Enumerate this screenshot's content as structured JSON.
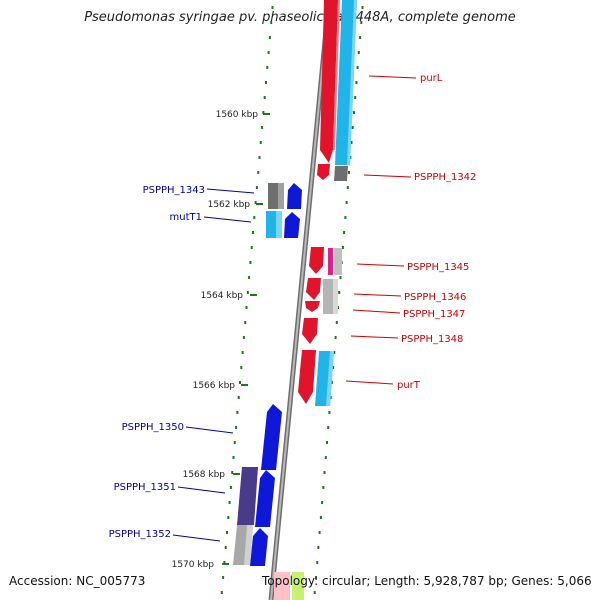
{
  "title": "Pseudomonas syringae pv. phaseolicola 1448A, complete genome",
  "accession": "Accession: NC_005773",
  "summary": "Topology: circular; Length: 5,928,787 bp; Genes: 5,066",
  "colors": {
    "backbone": "#8a8a8a",
    "plus_gene": "#e0142a",
    "minus_gene": "#1018d8",
    "plus_cds": "#20b4e8",
    "minus_cds": "#20b4e8",
    "gray_feature": "#8c8c8c",
    "purple_feature": "#4a3a8a",
    "pink_feature": "#e0208a",
    "tick": "#1a7a1a",
    "plus_label": "#cc0000",
    "minus_label": "#0000aa"
  },
  "scale": {
    "ticks": [
      {
        "label": "1560 kbp"
      },
      {
        "label": "1562 kbp"
      },
      {
        "label": "1564 kbp"
      },
      {
        "label": "1566 kbp"
      },
      {
        "label": "1568 kbp"
      },
      {
        "label": "1570 kbp"
      }
    ]
  },
  "genes_plus": [
    {
      "label": "purL"
    },
    {
      "label": "PSPPH_1342"
    },
    {
      "label": "PSPPH_1345"
    },
    {
      "label": "PSPPH_1346"
    },
    {
      "label": "PSPPH_1347"
    },
    {
      "label": "PSPPH_1348"
    },
    {
      "label": "purT"
    }
  ],
  "genes_minus": [
    {
      "label": "PSPPH_1343"
    },
    {
      "label": "mutT1"
    },
    {
      "label": "PSPPH_1350"
    },
    {
      "label": "PSPPH_1351"
    },
    {
      "label": "PSPPH_1352"
    }
  ]
}
